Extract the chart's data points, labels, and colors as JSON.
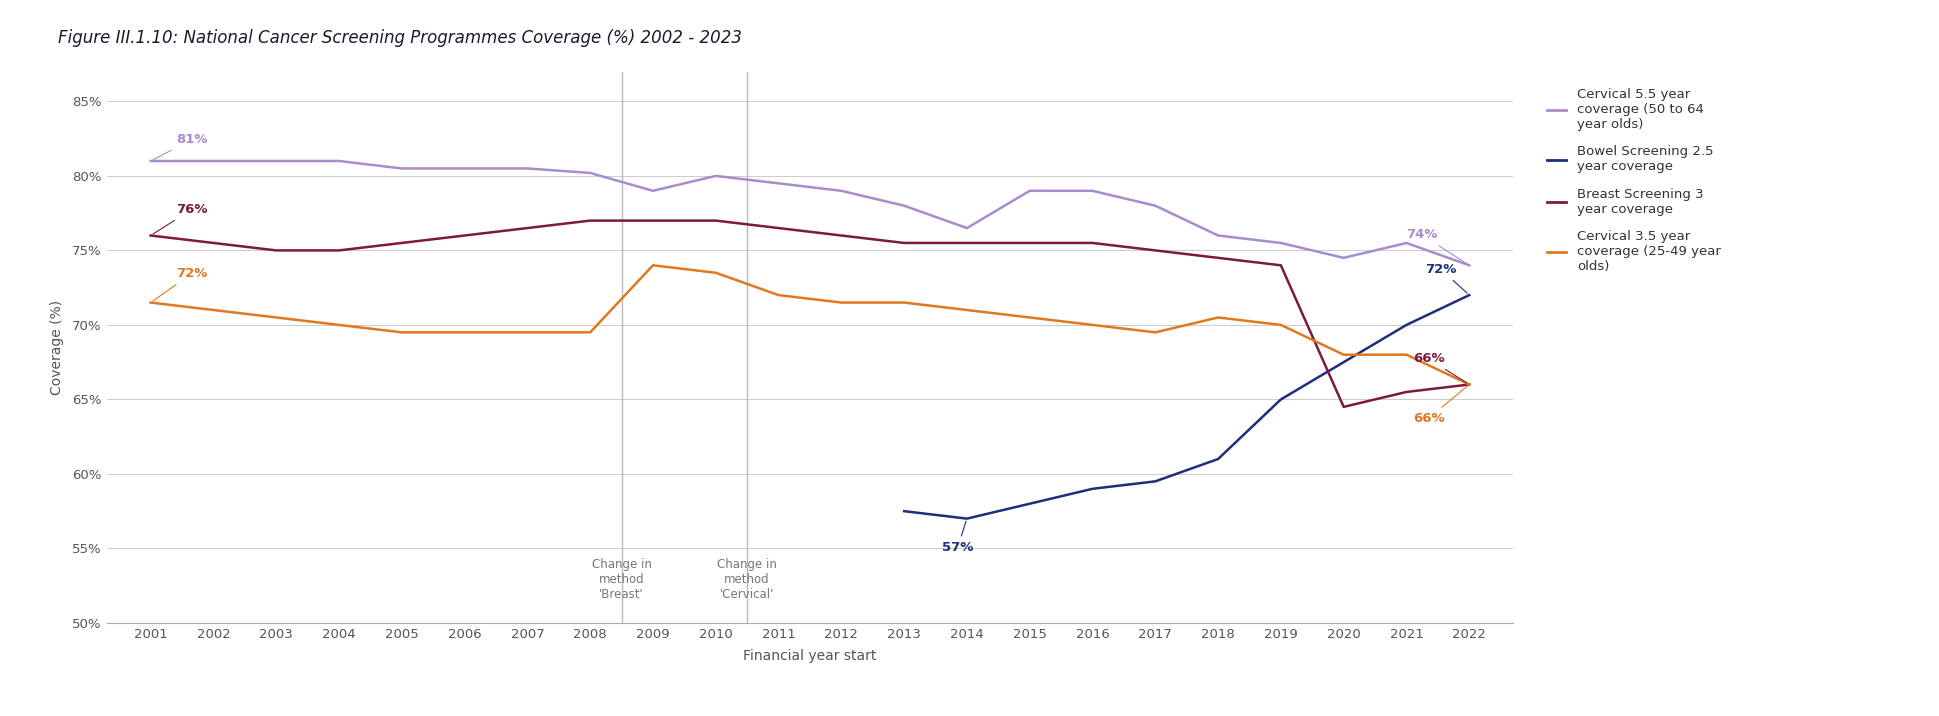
{
  "title": "Figure III.1.10: National Cancer Screening Programmes Coverage (%) 2002 - 2023",
  "xlabel": "Financial year start",
  "ylabel": "Coverage (%)",
  "ylim": [
    50,
    87
  ],
  "yticks": [
    50,
    55,
    60,
    65,
    70,
    75,
    80,
    85
  ],
  "ytick_labels": [
    "50%",
    "55%",
    "60%",
    "65%",
    "70%",
    "75%",
    "80%",
    "85%"
  ],
  "xticks": [
    2001,
    2002,
    2003,
    2004,
    2005,
    2006,
    2007,
    2008,
    2009,
    2010,
    2011,
    2012,
    2013,
    2014,
    2015,
    2016,
    2017,
    2018,
    2019,
    2020,
    2021,
    2022
  ],
  "vlines": [
    2008.5,
    2010.5
  ],
  "vline_labels": [
    "Change in\nmethod\n'Breast'",
    "Change in\nmethod\n'Cervical'"
  ],
  "cervical_55": {
    "years": [
      2001,
      2002,
      2003,
      2004,
      2005,
      2006,
      2007,
      2008,
      2009,
      2010,
      2011,
      2012,
      2013,
      2014,
      2015,
      2016,
      2017,
      2018,
      2019,
      2020,
      2021,
      2022
    ],
    "values": [
      81,
      81,
      81,
      81,
      80.5,
      80.5,
      80.5,
      80.2,
      79.0,
      80.0,
      79.5,
      79.0,
      78.0,
      76.5,
      79.0,
      79.0,
      78.0,
      76.0,
      75.5,
      74.5,
      75.5,
      74.0
    ],
    "color": "#a98ccc",
    "label": "Cervical 5.5 year\ncoverage (50 to 64\nyear olds)",
    "linewidth": 1.8
  },
  "bowel": {
    "years": [
      2013,
      2014,
      2015,
      2016,
      2017,
      2018,
      2019,
      2020,
      2021,
      2022
    ],
    "values": [
      57.5,
      57.0,
      58.0,
      59.0,
      59.5,
      61.0,
      65.0,
      67.5,
      70.0,
      72.0
    ],
    "color": "#1f2e7a",
    "label": "Bowel Screening 2.5\nyear coverage",
    "linewidth": 1.8
  },
  "breast": {
    "years": [
      2001,
      2002,
      2003,
      2004,
      2005,
      2006,
      2007,
      2008,
      2009,
      2010,
      2011,
      2012,
      2013,
      2014,
      2015,
      2016,
      2017,
      2018,
      2019,
      2020,
      2021,
      2022
    ],
    "values": [
      76.0,
      75.5,
      75.0,
      75.0,
      75.5,
      76.0,
      76.5,
      77.0,
      77.0,
      77.0,
      76.5,
      76.0,
      75.5,
      75.5,
      75.5,
      75.5,
      75.0,
      74.5,
      74.0,
      64.5,
      65.5,
      66.0
    ],
    "color": "#7b1a3e",
    "label": "Breast Screening 3\nyear coverage",
    "linewidth": 1.8
  },
  "cervical_35": {
    "years": [
      2001,
      2002,
      2003,
      2004,
      2005,
      2006,
      2007,
      2008,
      2009,
      2010,
      2011,
      2012,
      2013,
      2014,
      2015,
      2016,
      2017,
      2018,
      2019,
      2020,
      2021,
      2022
    ],
    "values": [
      71.5,
      71.0,
      70.5,
      70.0,
      69.5,
      69.5,
      69.5,
      69.5,
      74.0,
      73.5,
      72.0,
      71.5,
      71.5,
      71.0,
      70.5,
      70.0,
      69.5,
      70.5,
      70.0,
      68.0,
      68.0,
      66.0
    ],
    "color": "#e07820",
    "label": "Cervical 3.5 year\ncoverage (25-49 year\nolds)",
    "linewidth": 1.8
  },
  "background_color": "#ffffff",
  "grid_color": "#cccccc",
  "title_color": "#1a1a2e",
  "title_fontsize": 12,
  "axis_label_fontsize": 10,
  "tick_fontsize": 9.5,
  "annotation_fontsize": 9.5
}
